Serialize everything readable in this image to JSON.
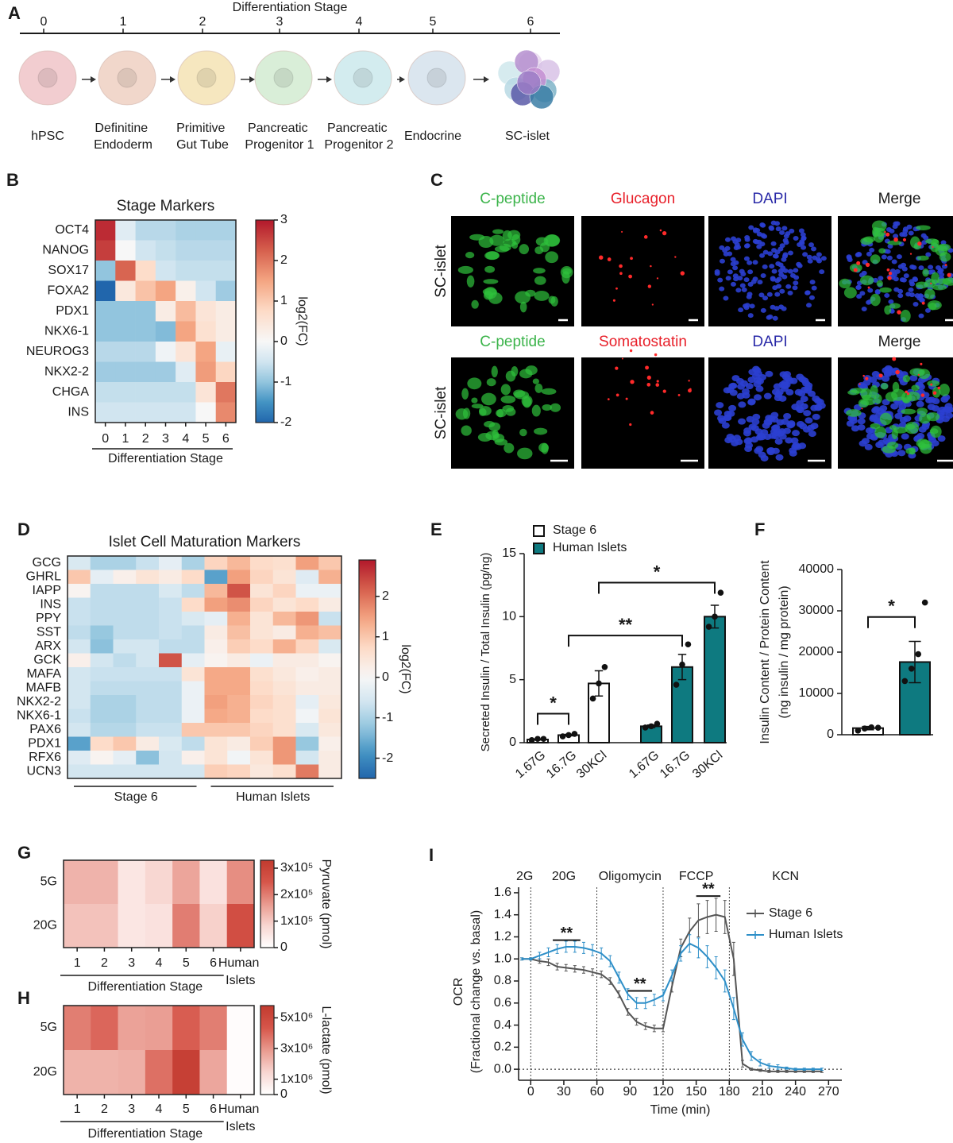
{
  "panel_labels": [
    "A",
    "B",
    "C",
    "D",
    "E",
    "F",
    "G",
    "H",
    "I"
  ],
  "stages": {
    "axis_title": "Differentiation Stage",
    "ticks": [
      0,
      1,
      2,
      3,
      4,
      5,
      6
    ],
    "labels": [
      "hPSC",
      "Definitine Endoderm",
      "Primitive Gut Tube",
      "Pancreatic Progenitor 1",
      "Pancreatic Progenitor 2",
      "Endocrine",
      "SC-islet"
    ],
    "colors": [
      "#f2cdd0",
      "#f1d7cb",
      "#f6e7bf",
      "#d9eed8",
      "#d3ecef",
      "#dbe6ef",
      "#c9a9d9"
    ]
  },
  "micrographs": {
    "rows": [
      {
        "label": "SC-islet",
        "channels": [
          {
            "name": "C-peptide",
            "color": "#3cb44b"
          },
          {
            "name": "Glucagon",
            "color": "#e8202a"
          },
          {
            "name": "DAPI",
            "color": "#2a2aa8"
          },
          {
            "name": "Merge",
            "color": "#1a1a1a"
          }
        ]
      },
      {
        "label": "SC-islet",
        "channels": [
          {
            "name": "C-peptide",
            "color": "#3cb44b"
          },
          {
            "name": "Somatostatin",
            "color": "#e8202a"
          },
          {
            "name": "DAPI",
            "color": "#2a2aa8"
          },
          {
            "name": "Merge",
            "color": "#1a1a1a"
          }
        ]
      }
    ]
  },
  "chart_data": [
    {
      "type": "heatmap",
      "title": "Stage Markers",
      "colormap": "diverging",
      "rows": [
        "OCT4",
        "NANOG",
        "SOX17",
        "FOXA2",
        "PDX1",
        "NKX6-1",
        "NEUROG3",
        "NKX2-2",
        "CHGA",
        "INS"
      ],
      "columns": [
        0,
        1,
        2,
        3,
        4,
        5,
        6
      ],
      "xlabel": "Differentiation Stage",
      "values": [
        [
          2.8,
          -0.3,
          -0.7,
          -0.7,
          -0.8,
          -0.8,
          -0.8
        ],
        [
          2.6,
          0,
          -0.5,
          -0.6,
          -0.7,
          -0.7,
          -0.7
        ],
        [
          -1,
          2.2,
          0.7,
          -0.5,
          -0.6,
          -0.6,
          -0.6
        ],
        [
          -2,
          0.4,
          1.1,
          1.5,
          0.2,
          -0.5,
          -0.9
        ],
        [
          -1,
          -1,
          -1,
          0.3,
          1.2,
          0.5,
          0.3
        ],
        [
          -1,
          -1,
          -1,
          -1.1,
          1.5,
          0.6,
          0.3
        ],
        [
          -0.7,
          -0.7,
          -0.7,
          -0.1,
          0.5,
          1.5,
          -0.2
        ],
        [
          -0.9,
          -0.9,
          -0.9,
          -0.9,
          -0.3,
          1.6,
          0.8
        ],
        [
          -0.6,
          -0.6,
          -0.6,
          -0.6,
          -0.6,
          0.5,
          2
        ],
        [
          -0.5,
          -0.5,
          -0.5,
          -0.5,
          -0.5,
          0,
          1.8
        ]
      ],
      "colorbar": {
        "label": "log2(FC)",
        "lim": [
          -2,
          3
        ],
        "ticks": [
          3,
          2,
          1,
          0,
          -1,
          -2
        ]
      }
    },
    {
      "type": "heatmap",
      "title": "Islet Cell Maturation Markers",
      "colormap": "diverging",
      "rows": [
        "GCG",
        "GHRL",
        "IAPP",
        "INS",
        "PPY",
        "SST",
        "ARX",
        "GCK",
        "MAFA",
        "MAFB",
        "NKX2-2",
        "NKX6-1",
        "PAX6",
        "PDX1",
        "RFX6",
        "UCN3"
      ],
      "column_groups": [
        "Stage 6",
        "Human Islets"
      ],
      "values": [
        [
          -0.5,
          -1,
          -1,
          -0.7,
          -0.3,
          -1,
          0.8,
          1.2,
          0.7,
          0.6,
          1.5,
          1
        ],
        [
          1,
          -0.3,
          0.2,
          0.5,
          0.3,
          0.7,
          -1.7,
          1.5,
          0.8,
          0.5,
          -0.4,
          1.3
        ],
        [
          0.1,
          -0.8,
          -0.8,
          -0.8,
          -0.5,
          -0.8,
          1.2,
          2.3,
          0.5,
          0.8,
          -0.2,
          -0.2
        ],
        [
          -0.7,
          -0.8,
          -0.8,
          -0.8,
          -0.7,
          0.7,
          1.5,
          1.7,
          0.8,
          0.5,
          0.7,
          0.3
        ],
        [
          -0.7,
          -0.8,
          -0.8,
          -0.8,
          -0.7,
          -0.5,
          -0.3,
          1.3,
          0.5,
          1.2,
          1.6,
          -0.7
        ],
        [
          -0.8,
          -1.2,
          -0.8,
          -0.8,
          -0.7,
          -0.8,
          0.3,
          1.1,
          0.5,
          0.3,
          1.3,
          1.1
        ],
        [
          -0.6,
          -1.3,
          -0.6,
          -0.6,
          -0.8,
          -0.8,
          0.2,
          0.9,
          0.7,
          1.3,
          0.8,
          -0.5
        ],
        [
          0.2,
          -0.6,
          -0.8,
          -0.6,
          2.3,
          -0.3,
          0.1,
          0.3,
          -0.2,
          0.3,
          0.3,
          0.1
        ],
        [
          -0.6,
          -0.7,
          -0.7,
          -0.7,
          -0.7,
          0.5,
          1.4,
          1.4,
          0.6,
          0.4,
          0.2,
          0.3
        ],
        [
          -0.6,
          -0.8,
          -0.8,
          -0.8,
          -0.8,
          -0.2,
          1.4,
          1.4,
          0.7,
          0.5,
          0.3,
          0.3
        ],
        [
          -0.6,
          -1,
          -1,
          -0.8,
          -0.8,
          -0.2,
          1.5,
          1.3,
          0.8,
          0.6,
          -0.3,
          0.4
        ],
        [
          -0.7,
          -1,
          -1,
          -0.8,
          -0.8,
          -0.2,
          1.4,
          1.3,
          0.7,
          0.6,
          -0.1,
          0.5
        ],
        [
          -0.6,
          -0.9,
          -0.9,
          -0.7,
          -0.7,
          1,
          1,
          1,
          0.8,
          0.6,
          -0.5,
          0.4
        ],
        [
          -1.7,
          0.7,
          1,
          0.3,
          -0.5,
          -0.8,
          0.5,
          0.3,
          0.9,
          1.6,
          -1.2,
          0.2
        ],
        [
          -0.4,
          0.1,
          -0.3,
          -1.3,
          -0.6,
          0.2,
          0.5,
          -0.1,
          0.5,
          1.6,
          -0.6,
          0.3
        ],
        [
          -0.6,
          -0.6,
          -0.6,
          -0.6,
          -0.6,
          -0.6,
          0.9,
          0.8,
          0.4,
          0.6,
          1.9,
          0.3
        ]
      ],
      "colorbar": {
        "label": "log2(FC)",
        "lim": [
          -2.5,
          2.9
        ],
        "ticks": [
          2,
          1,
          0,
          -1,
          -2
        ]
      }
    },
    {
      "type": "bar",
      "ylabel": "Secreted Insulin / Total Insulin (pg/ng)",
      "categories": [
        "1.67G",
        "16.7G",
        "30KCl",
        "1.67G",
        "16.7G",
        "30KCl"
      ],
      "series": [
        {
          "name": "Stage 6",
          "color": "#ffffff",
          "values": [
            0.25,
            0.6,
            4.7,
            null,
            null,
            null
          ],
          "errors": [
            0.04,
            0.06,
            1.0,
            null,
            null,
            null
          ],
          "points": [
            [
              0.2,
              0.3,
              0.3
            ],
            [
              0.5,
              0.6,
              0.7
            ],
            [
              3.5,
              4.7,
              6.0
            ],
            null,
            null,
            null
          ]
        },
        {
          "name": "Human Islets",
          "color": "#0e7a80",
          "values": [
            null,
            null,
            null,
            1.3,
            6.0,
            10.0
          ],
          "errors": [
            null,
            null,
            null,
            0.1,
            1.0,
            0.9
          ],
          "points": [
            null,
            null,
            null,
            [
              1.2,
              1.3,
              1.5
            ],
            [
              4.6,
              6.2,
              7.8
            ],
            [
              9.2,
              10,
              11.9
            ]
          ]
        }
      ],
      "ylim": [
        0,
        15
      ],
      "yticks": [
        0,
        5,
        10,
        15
      ],
      "annotations": [
        {
          "text": "*",
          "between": [
            0,
            1
          ],
          "y": 2.3
        },
        {
          "text": "**",
          "between": [
            1,
            4
          ],
          "y": 8.5
        },
        {
          "text": "*",
          "between": [
            2,
            5
          ],
          "y": 12.7
        }
      ]
    },
    {
      "type": "bar",
      "ylabel": [
        "Insulin Content / Protein Content",
        "(ng insulin / mg protein)"
      ],
      "colors": [
        "#ffffff",
        "#0e7a80"
      ],
      "values": [
        1600,
        17600
      ],
      "errors": [
        400,
        5000
      ],
      "points": [
        [
          1000,
          1500,
          1800,
          1700
        ],
        [
          13000,
          16000,
          19500,
          32000
        ]
      ],
      "ylim": [
        0,
        40000
      ],
      "yticks": [
        0,
        10000,
        20000,
        30000,
        40000
      ],
      "annotations": [
        {
          "text": "*",
          "between": [
            0,
            1
          ],
          "y": 28500
        }
      ]
    },
    {
      "type": "heatmap",
      "colormap": "sequential",
      "rows": [
        "5G",
        "20G"
      ],
      "columns": [
        1,
        2,
        3,
        4,
        5,
        6,
        "Human Islets"
      ],
      "xlabel": "Differentiation Stage",
      "values": [
        [
          130000,
          130000,
          50000,
          80000,
          150000,
          60000,
          180000
        ],
        [
          110000,
          110000,
          50000,
          60000,
          200000,
          90000,
          270000
        ]
      ],
      "colorbar": {
        "label": "Pyruvate (pmol)",
        "lim": [
          0,
          330000
        ],
        "ticks": [
          {
            "value": 300000,
            "label": "3x10⁵"
          },
          {
            "value": 200000,
            "label": "2x10⁵"
          },
          {
            "value": 100000,
            "label": "1x10⁵"
          },
          0
        ]
      }
    },
    {
      "type": "heatmap",
      "colormap": "sequential",
      "rows": [
        "5G",
        "20G"
      ],
      "columns": [
        1,
        2,
        3,
        4,
        5,
        6,
        "Human Islets"
      ],
      "xlabel": "Differentiation Stage",
      "values": [
        [
          3500000,
          4000000,
          2700000,
          2800000,
          4200000,
          3500000,
          100000
        ],
        [
          2300000,
          2300000,
          2400000,
          3800000,
          5500000,
          2600000,
          100000
        ]
      ],
      "colorbar": {
        "label": "L-lactate (pmol)",
        "lim": [
          0,
          5800000
        ],
        "ticks": [
          {
            "value": 5000000,
            "label": "5x10⁶"
          },
          {
            "value": 3000000,
            "label": "3x10⁶"
          },
          {
            "value": 1000000,
            "label": "1x10⁶"
          },
          0
        ]
      }
    },
    {
      "type": "line",
      "xlabel": "Time (min)",
      "ylabel": [
        "OCR",
        "(Fractional change vs. basal)"
      ],
      "phases": [
        "2G",
        "20G",
        "Oligomycin",
        "FCCP",
        "KCN"
      ],
      "phase_bounds": [
        0,
        60,
        120,
        180
      ],
      "zero_line": true,
      "x": [
        -8,
        0,
        8,
        16,
        24,
        32,
        40,
        48,
        56,
        64,
        72,
        80,
        88,
        96,
        104,
        112,
        120,
        128,
        136,
        144,
        152,
        160,
        168,
        176,
        184,
        192,
        200,
        208,
        216,
        224,
        232,
        240,
        248,
        256,
        264
      ],
      "series": [
        {
          "name": "Stage 6",
          "color": "#555555",
          "values": [
            1.0,
            1.0,
            0.98,
            0.97,
            0.93,
            0.92,
            0.91,
            0.9,
            0.88,
            0.86,
            0.8,
            0.68,
            0.52,
            0.43,
            0.39,
            0.37,
            0.37,
            0.75,
            1.1,
            1.25,
            1.35,
            1.38,
            1.4,
            1.38,
            1.0,
            0.05,
            0.0,
            -0.01,
            -0.02,
            -0.02,
            -0.02,
            -0.02,
            -0.02,
            -0.02,
            -0.02
          ],
          "errors": [
            0.01,
            0.01,
            0.02,
            0.03,
            0.03,
            0.03,
            0.03,
            0.03,
            0.03,
            0.03,
            0.03,
            0.03,
            0.03,
            0.03,
            0.03,
            0.03,
            0.03,
            0.05,
            0.08,
            0.12,
            0.15,
            0.15,
            0.15,
            0.15,
            0.15,
            0.03,
            0.01,
            0.01,
            0.01,
            0.01,
            0.01,
            0.01,
            0.01,
            0.01,
            0.01
          ]
        },
        {
          "name": "Human Islets",
          "color": "#2e8fc8",
          "values": [
            1.0,
            1.0,
            1.03,
            1.06,
            1.09,
            1.11,
            1.11,
            1.1,
            1.08,
            1.05,
            0.98,
            0.83,
            0.68,
            0.6,
            0.6,
            0.63,
            0.67,
            0.85,
            1.05,
            1.14,
            1.1,
            1.02,
            0.92,
            0.8,
            0.55,
            0.27,
            0.12,
            0.06,
            0.03,
            0.02,
            0.01,
            0,
            0,
            0,
            0
          ],
          "errors": [
            0.01,
            0.01,
            0.03,
            0.04,
            0.04,
            0.05,
            0.05,
            0.05,
            0.05,
            0.05,
            0.05,
            0.05,
            0.05,
            0.05,
            0.05,
            0.05,
            0.05,
            0.05,
            0.07,
            0.08,
            0.09,
            0.1,
            0.1,
            0.1,
            0.1,
            0.06,
            0.04,
            0.03,
            0.02,
            0.02,
            0.01,
            0.01,
            0.01,
            0.01,
            0.01
          ]
        }
      ],
      "xlim": [
        -11,
        282
      ],
      "xticks": [
        0,
        30,
        60,
        90,
        120,
        150,
        180,
        210,
        240,
        270
      ],
      "ylim": [
        -0.1,
        1.65
      ],
      "yticks": [
        {
          "value": 0,
          "label": "0.0"
        },
        0.2,
        0.4,
        0.6,
        0.8,
        {
          "value": 1,
          "label": "1.0"
        },
        1.2,
        1.4,
        1.6
      ],
      "annotations": [
        {
          "text": "**",
          "x": [
            20,
            45
          ],
          "y": 1.17
        },
        {
          "text": "**",
          "x": [
            88,
            110
          ],
          "y": 0.71
        },
        {
          "text": "**",
          "x": [
            150,
            172
          ],
          "y": 1.57
        }
      ]
    }
  ]
}
